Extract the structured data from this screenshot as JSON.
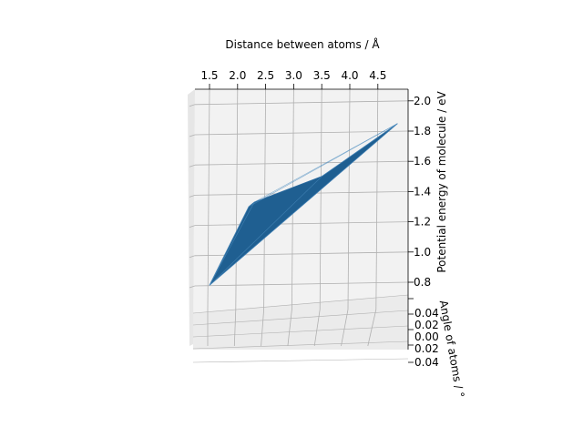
{
  "chart_data": {
    "type": "surface",
    "title": "",
    "xlabel": "Distance between atoms / Å",
    "ylabel": "Angle of atoms / °",
    "zlabel": "Potential energy of molecule / eV",
    "x_ticks": [
      "1.5",
      "2.0",
      "2.5",
      "3.0",
      "3.5",
      "4.0",
      "4.5"
    ],
    "y_ticks": [
      "0.04",
      "0.02",
      "0.00",
      "0.02",
      "0.04"
    ],
    "z_ticks": [
      "0.8",
      "1.0",
      "1.2",
      "1.4",
      "1.6",
      "1.8",
      "2.0"
    ],
    "xlim": [
      1.35,
      4.95
    ],
    "zlim": [
      0.7,
      2.07
    ],
    "grid": true,
    "surface_color": "#1f5f91",
    "pane_color": "#f2f2f2",
    "surface_points": [
      {
        "x": 1.5,
        "z": 0.78
      },
      {
        "x": 2.2,
        "z": 1.3
      },
      {
        "x": 2.3,
        "z": 1.33
      },
      {
        "x": 3.5,
        "z": 1.5
      },
      {
        "x": 4.85,
        "z": 1.85
      }
    ]
  }
}
